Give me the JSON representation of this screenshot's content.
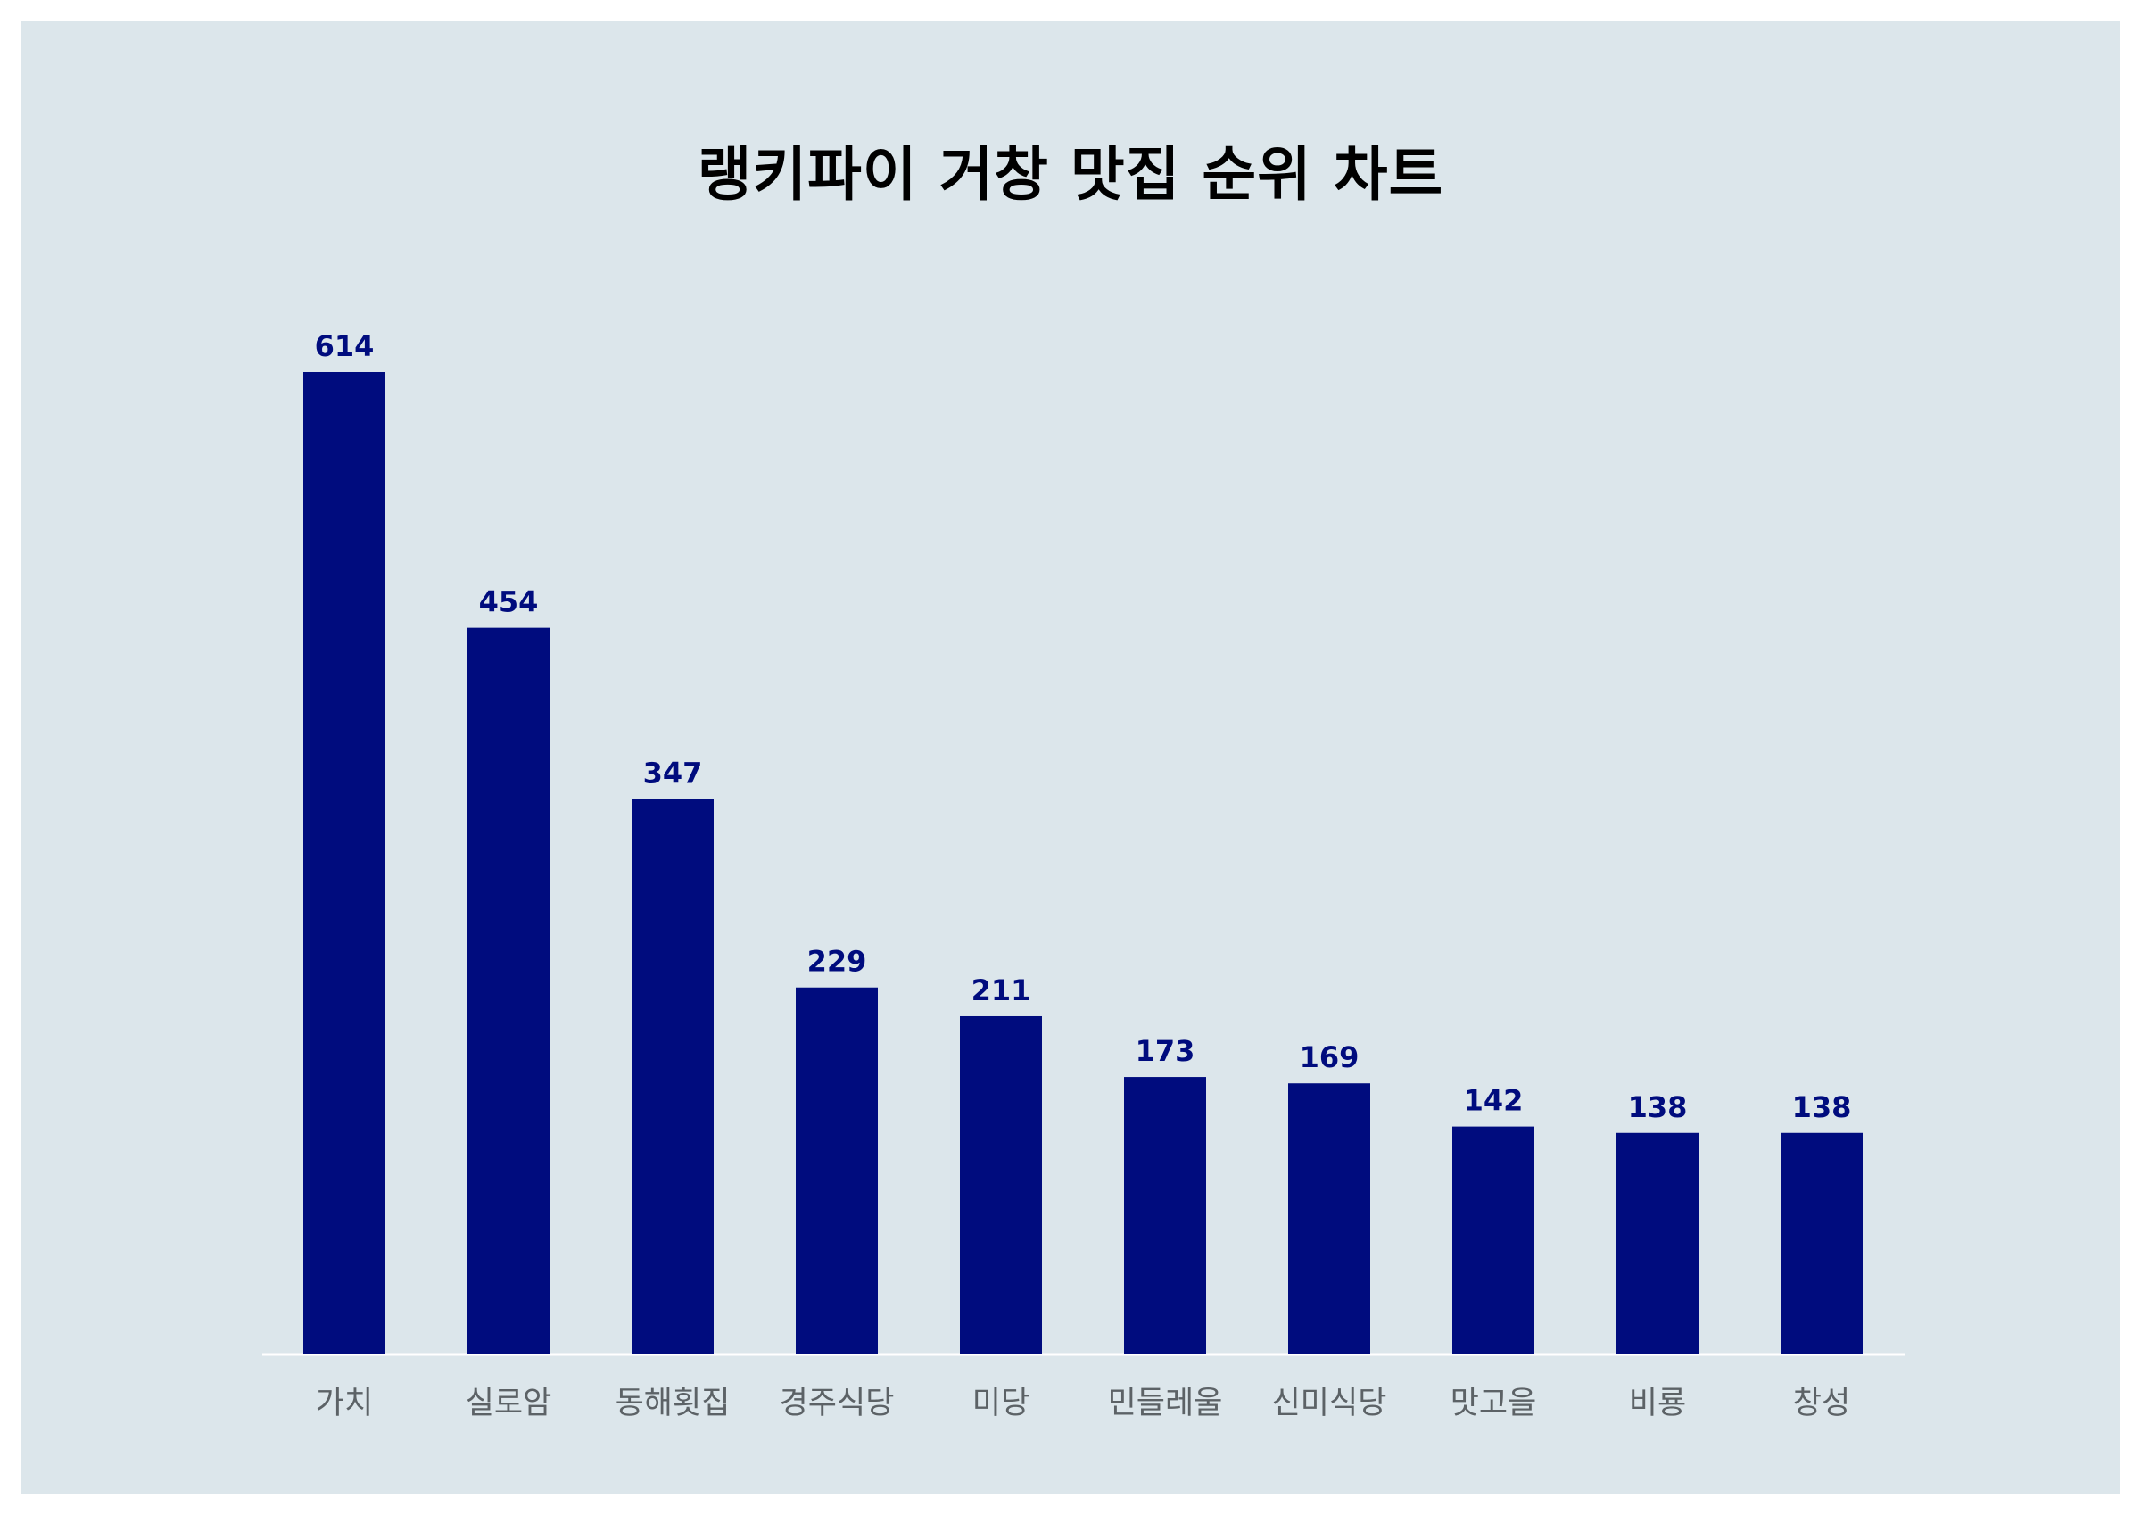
{
  "chart_data": {
    "type": "bar",
    "title": "랭키파이 거창 맛집 순위 차트",
    "categories": [
      "가치",
      "실로암",
      "동해횟집",
      "경주식당",
      "미당",
      "민들레울",
      "신미식당",
      "맛고을",
      "비룡",
      "창성"
    ],
    "values": [
      614,
      454,
      347,
      229,
      211,
      173,
      169,
      142,
      138,
      138
    ],
    "ylim": [
      0,
      614
    ],
    "grid": false,
    "legend": "none",
    "bar_color": "#000c7e",
    "background_color": "#dce6eb"
  }
}
